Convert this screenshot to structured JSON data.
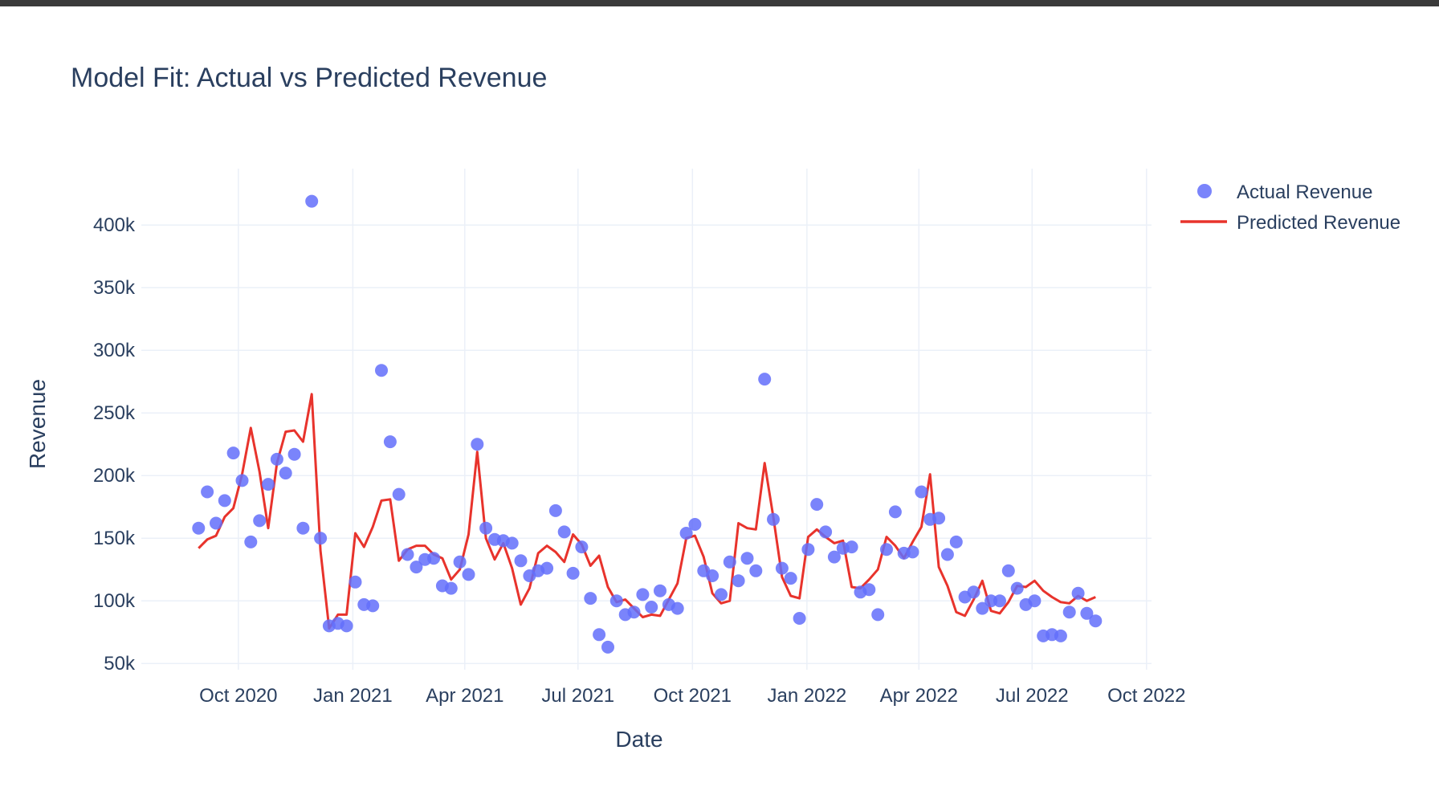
{
  "chart_data": {
    "type": "scatter",
    "title": "Model Fit: Actual vs Predicted Revenue",
    "xlabel": "Date",
    "ylabel": "Revenue",
    "xlim": [
      "2020-07-15",
      "2022-10-05"
    ],
    "ylim": [
      45000,
      445000
    ],
    "x_ticks": [
      {
        "date": "2020-10-01",
        "label": "Oct 2020"
      },
      {
        "date": "2021-01-01",
        "label": "Jan 2021"
      },
      {
        "date": "2021-04-01",
        "label": "Apr 2021"
      },
      {
        "date": "2021-07-01",
        "label": "Jul 2021"
      },
      {
        "date": "2021-10-01",
        "label": "Oct 2021"
      },
      {
        "date": "2022-01-01",
        "label": "Jan 2022"
      },
      {
        "date": "2022-04-01",
        "label": "Apr 2022"
      },
      {
        "date": "2022-07-01",
        "label": "Jul 2022"
      },
      {
        "date": "2022-10-01",
        "label": "Oct 2022"
      }
    ],
    "y_ticks": [
      {
        "value": 50000,
        "label": "50k"
      },
      {
        "value": 100000,
        "label": "100k"
      },
      {
        "value": 150000,
        "label": "150k"
      },
      {
        "value": 200000,
        "label": "200k"
      },
      {
        "value": 250000,
        "label": "250k"
      },
      {
        "value": 300000,
        "label": "300k"
      },
      {
        "value": 350000,
        "label": "350k"
      },
      {
        "value": 400000,
        "label": "400k"
      }
    ],
    "grid": true,
    "legend_position": "top-right",
    "x": [
      "2020-08-30",
      "2020-09-06",
      "2020-09-13",
      "2020-09-20",
      "2020-09-27",
      "2020-10-04",
      "2020-10-11",
      "2020-10-18",
      "2020-10-25",
      "2020-11-01",
      "2020-11-08",
      "2020-11-15",
      "2020-11-22",
      "2020-11-29",
      "2020-12-06",
      "2020-12-13",
      "2020-12-20",
      "2020-12-27",
      "2021-01-03",
      "2021-01-10",
      "2021-01-17",
      "2021-01-24",
      "2021-01-31",
      "2021-02-07",
      "2021-02-14",
      "2021-02-21",
      "2021-02-28",
      "2021-03-07",
      "2021-03-14",
      "2021-03-21",
      "2021-03-28",
      "2021-04-04",
      "2021-04-11",
      "2021-04-18",
      "2021-04-25",
      "2021-05-02",
      "2021-05-09",
      "2021-05-16",
      "2021-05-23",
      "2021-05-30",
      "2021-06-06",
      "2021-06-13",
      "2021-06-20",
      "2021-06-27",
      "2021-07-04",
      "2021-07-11",
      "2021-07-18",
      "2021-07-25",
      "2021-08-01",
      "2021-08-08",
      "2021-08-15",
      "2021-08-22",
      "2021-08-29",
      "2021-09-05",
      "2021-09-12",
      "2021-09-19",
      "2021-09-26",
      "2021-10-03",
      "2021-10-10",
      "2021-10-17",
      "2021-10-24",
      "2021-10-31",
      "2021-11-07",
      "2021-11-14",
      "2021-11-21",
      "2021-11-28",
      "2021-12-05",
      "2021-12-12",
      "2021-12-19",
      "2021-12-26",
      "2022-01-02",
      "2022-01-09",
      "2022-01-16",
      "2022-01-23",
      "2022-01-30",
      "2022-02-06",
      "2022-02-13",
      "2022-02-20",
      "2022-02-27",
      "2022-03-06",
      "2022-03-13",
      "2022-03-20",
      "2022-03-27",
      "2022-04-03",
      "2022-04-10",
      "2022-04-17",
      "2022-04-24",
      "2022-05-01",
      "2022-05-08",
      "2022-05-15",
      "2022-05-22",
      "2022-05-29",
      "2022-06-05",
      "2022-06-12",
      "2022-06-19",
      "2022-06-26",
      "2022-07-03",
      "2022-07-10",
      "2022-07-17",
      "2022-07-24",
      "2022-07-31",
      "2022-08-07",
      "2022-08-14",
      "2022-08-21"
    ],
    "series": [
      {
        "name": "Actual Revenue",
        "mode": "markers",
        "color": "#636efa",
        "values": [
          158000,
          187000,
          162000,
          180000,
          218000,
          196000,
          147000,
          164000,
          193000,
          213000,
          202000,
          217000,
          158000,
          419000,
          150000,
          80000,
          82000,
          80000,
          115000,
          97000,
          96000,
          284000,
          227000,
          185000,
          137000,
          127000,
          133000,
          134000,
          112000,
          110000,
          131000,
          121000,
          225000,
          158000,
          149000,
          148000,
          146000,
          132000,
          120000,
          124000,
          126000,
          172000,
          155000,
          122000,
          143000,
          102000,
          73000,
          63000,
          100000,
          89000,
          91000,
          105000,
          95000,
          108000,
          97000,
          94000,
          154000,
          161000,
          124000,
          120000,
          105000,
          131000,
          116000,
          134000,
          124000,
          277000,
          165000,
          126000,
          118000,
          86000,
          141000,
          177000,
          155000,
          135000,
          142000,
          143000,
          107000,
          109000,
          89000,
          141000,
          171000,
          138000,
          139000,
          187000,
          165000,
          166000,
          137000,
          147000,
          103000,
          107000,
          94000,
          100000,
          100000,
          124000,
          110000,
          97000,
          100000,
          72000,
          73000,
          72000,
          91000,
          106000,
          90000,
          84000
        ]
      },
      {
        "name": "Predicted Revenue",
        "mode": "lines",
        "color": "#e8332c",
        "values": [
          142000,
          149000,
          152000,
          167000,
          174000,
          201000,
          238000,
          203000,
          158000,
          210000,
          235000,
          236000,
          227000,
          265000,
          140000,
          78000,
          89000,
          89000,
          154000,
          143000,
          159000,
          180000,
          181000,
          132000,
          141000,
          144000,
          144000,
          137000,
          134000,
          117000,
          125000,
          153000,
          219000,
          150000,
          133000,
          146000,
          126000,
          97000,
          110000,
          138000,
          144000,
          139000,
          131000,
          153000,
          145000,
          128000,
          136000,
          111000,
          99000,
          101000,
          94000,
          87000,
          89000,
          88000,
          101000,
          114000,
          150000,
          152000,
          135000,
          106000,
          98000,
          100000,
          162000,
          158000,
          157000,
          210000,
          167000,
          119000,
          104000,
          102000,
          151000,
          157000,
          151000,
          146000,
          148000,
          111000,
          110000,
          117000,
          125000,
          151000,
          144000,
          134000,
          147000,
          159000,
          201000,
          127000,
          112000,
          91000,
          88000,
          101000,
          116000,
          92000,
          90000,
          99000,
          112000,
          111000,
          116000,
          108000,
          103000,
          99000,
          98000,
          104000,
          100000,
          103000
        ]
      }
    ]
  }
}
